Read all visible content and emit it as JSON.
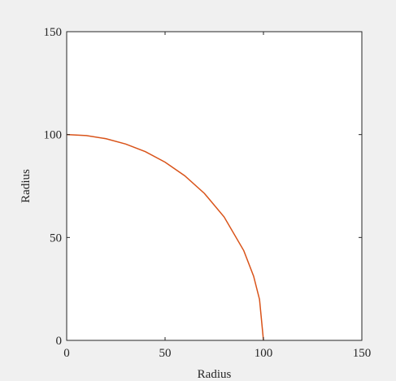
{
  "chart_data": {
    "type": "line",
    "title": "",
    "xlabel": "Radius",
    "ylabel": "Radius",
    "xlim": [
      0,
      150
    ],
    "ylim": [
      0,
      150
    ],
    "x_ticks": [
      0,
      50,
      100,
      150
    ],
    "y_ticks": [
      0,
      50,
      100,
      150
    ],
    "x_tick_labels": [
      "0",
      "50",
      "100",
      "150"
    ],
    "y_tick_labels": [
      "0",
      "50",
      "100",
      "150"
    ],
    "grid": false,
    "series": [
      {
        "color": "#d95319",
        "x": [
          0,
          10,
          20,
          30,
          40,
          50,
          60,
          70,
          80,
          90,
          95,
          98,
          100
        ],
        "y": [
          100,
          99.5,
          98.0,
          95.4,
          91.7,
          86.6,
          80.0,
          71.4,
          60.0,
          43.6,
          31.2,
          19.9,
          0
        ]
      }
    ]
  },
  "colors": {
    "figure_background": "#f0f0f0",
    "axes_background": "#ffffff",
    "axis_color": "#262626",
    "line_color": "#d95319"
  }
}
